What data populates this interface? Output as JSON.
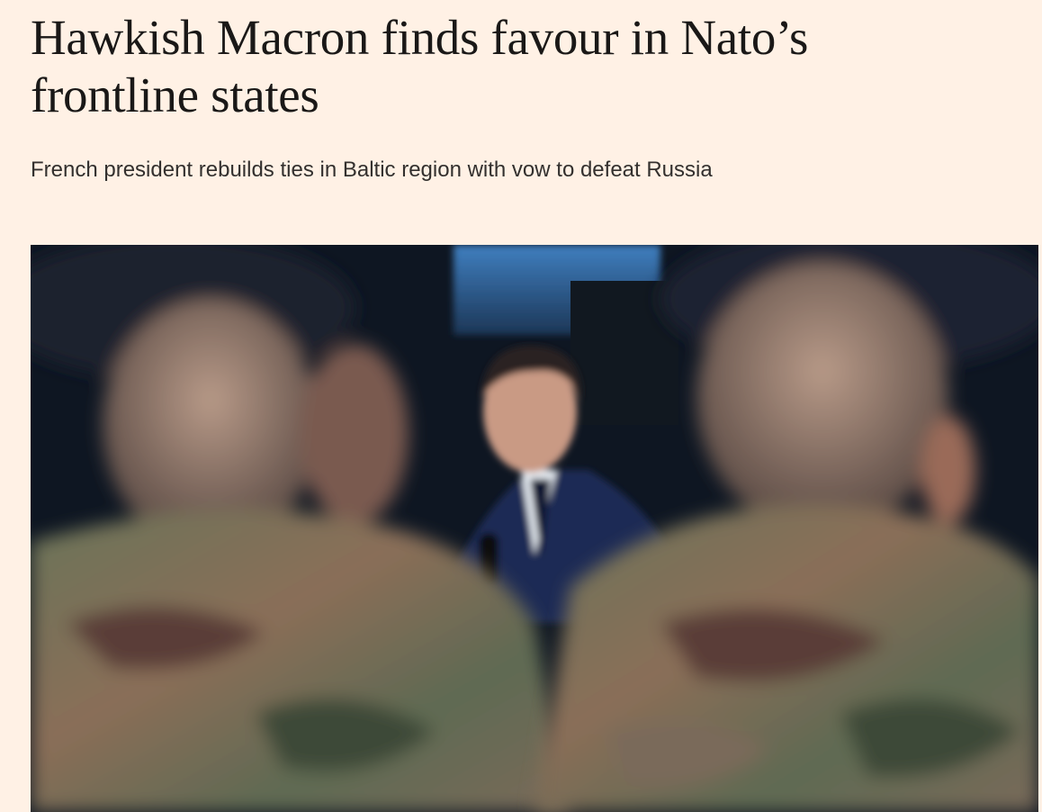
{
  "article": {
    "headline": "Hawkish Macron finds favour in Nato’s frontline states",
    "standfirst": "French president rebuilds ties in Baltic region with vow to defeat Russia",
    "image": {
      "subject": "main-photo"
    }
  },
  "colors": {
    "background": "#FFF1E5",
    "headline": "#1a1817",
    "standfirst": "#33302e"
  }
}
